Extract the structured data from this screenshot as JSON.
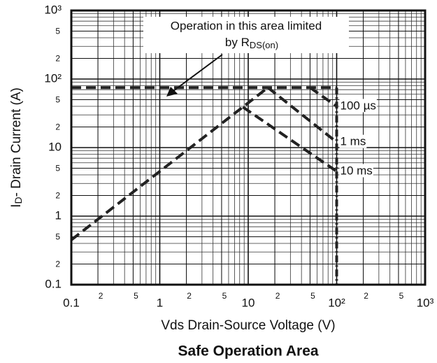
{
  "chart_data": {
    "type": "line",
    "title": "Safe Operation Area",
    "xlabel": "Vds Drain-Source Voltage (V)",
    "ylabel": {
      "main": "I",
      "sub": "D",
      "rest": "- Drain Current (A)"
    },
    "annotation": {
      "lines": [
        "Operation in this area limited",
        "by R"
      ],
      "subscript": "DS(on)"
    },
    "log_x": true,
    "log_y": true,
    "grid": true,
    "minor_grid": true,
    "xlim": [
      0.1,
      1000
    ],
    "ylim": [
      0.1,
      1000
    ],
    "xticks": [
      0.1,
      {
        "value": 0.2,
        "label": "2"
      },
      {
        "value": 0.5,
        "label": "5"
      },
      1,
      {
        "value": 2,
        "label": "2"
      },
      {
        "value": 5,
        "label": "5"
      },
      10,
      {
        "value": 20,
        "label": "2"
      },
      {
        "value": 50,
        "label": "5"
      },
      {
        "value": 100,
        "label": "10²"
      },
      {
        "value": 200,
        "label": "2"
      },
      {
        "value": 500,
        "label": "5"
      },
      {
        "value": 1000,
        "label": "10³"
      }
    ],
    "yticks": [
      0.1,
      {
        "value": 0.2,
        "label": "2"
      },
      {
        "value": 0.5,
        "label": "5"
      },
      1,
      {
        "value": 2,
        "label": "2"
      },
      {
        "value": 5,
        "label": "5"
      },
      10,
      {
        "value": 20,
        "label": "2"
      },
      {
        "value": 50,
        "label": "5"
      },
      {
        "value": 100,
        "label": "10²"
      },
      {
        "value": 200,
        "label": "2"
      },
      {
        "value": 500,
        "label": "5"
      },
      {
        "value": 1000,
        "label": "10³"
      }
    ],
    "series": [
      {
        "color": "#222222",
        "dash": "dashed",
        "x": [
          0.1,
          100
        ],
        "values": [
          75,
          75
        ]
      },
      {
        "color": "#222222",
        "dash": "dashed",
        "x": [
          0.1,
          16.7
        ],
        "values": [
          0.45,
          75
        ]
      },
      {
        "name": "100 µs",
        "color": "#222222",
        "dash": "dashed",
        "x": [
          50,
          100
        ],
        "values": [
          75,
          40
        ]
      },
      {
        "name": "1 ms",
        "color": "#222222",
        "dash": "dashed",
        "x": [
          16.7,
          100
        ],
        "values": [
          75,
          12
        ]
      },
      {
        "name": "10 ms",
        "color": "#222222",
        "dash": "dashed",
        "x": [
          8.7,
          100
        ],
        "values": [
          39,
          4.5
        ]
      },
      {
        "color": "#222222",
        "dash": "dashdot",
        "x": [
          100,
          100
        ],
        "values": [
          75,
          0.1
        ]
      }
    ]
  }
}
